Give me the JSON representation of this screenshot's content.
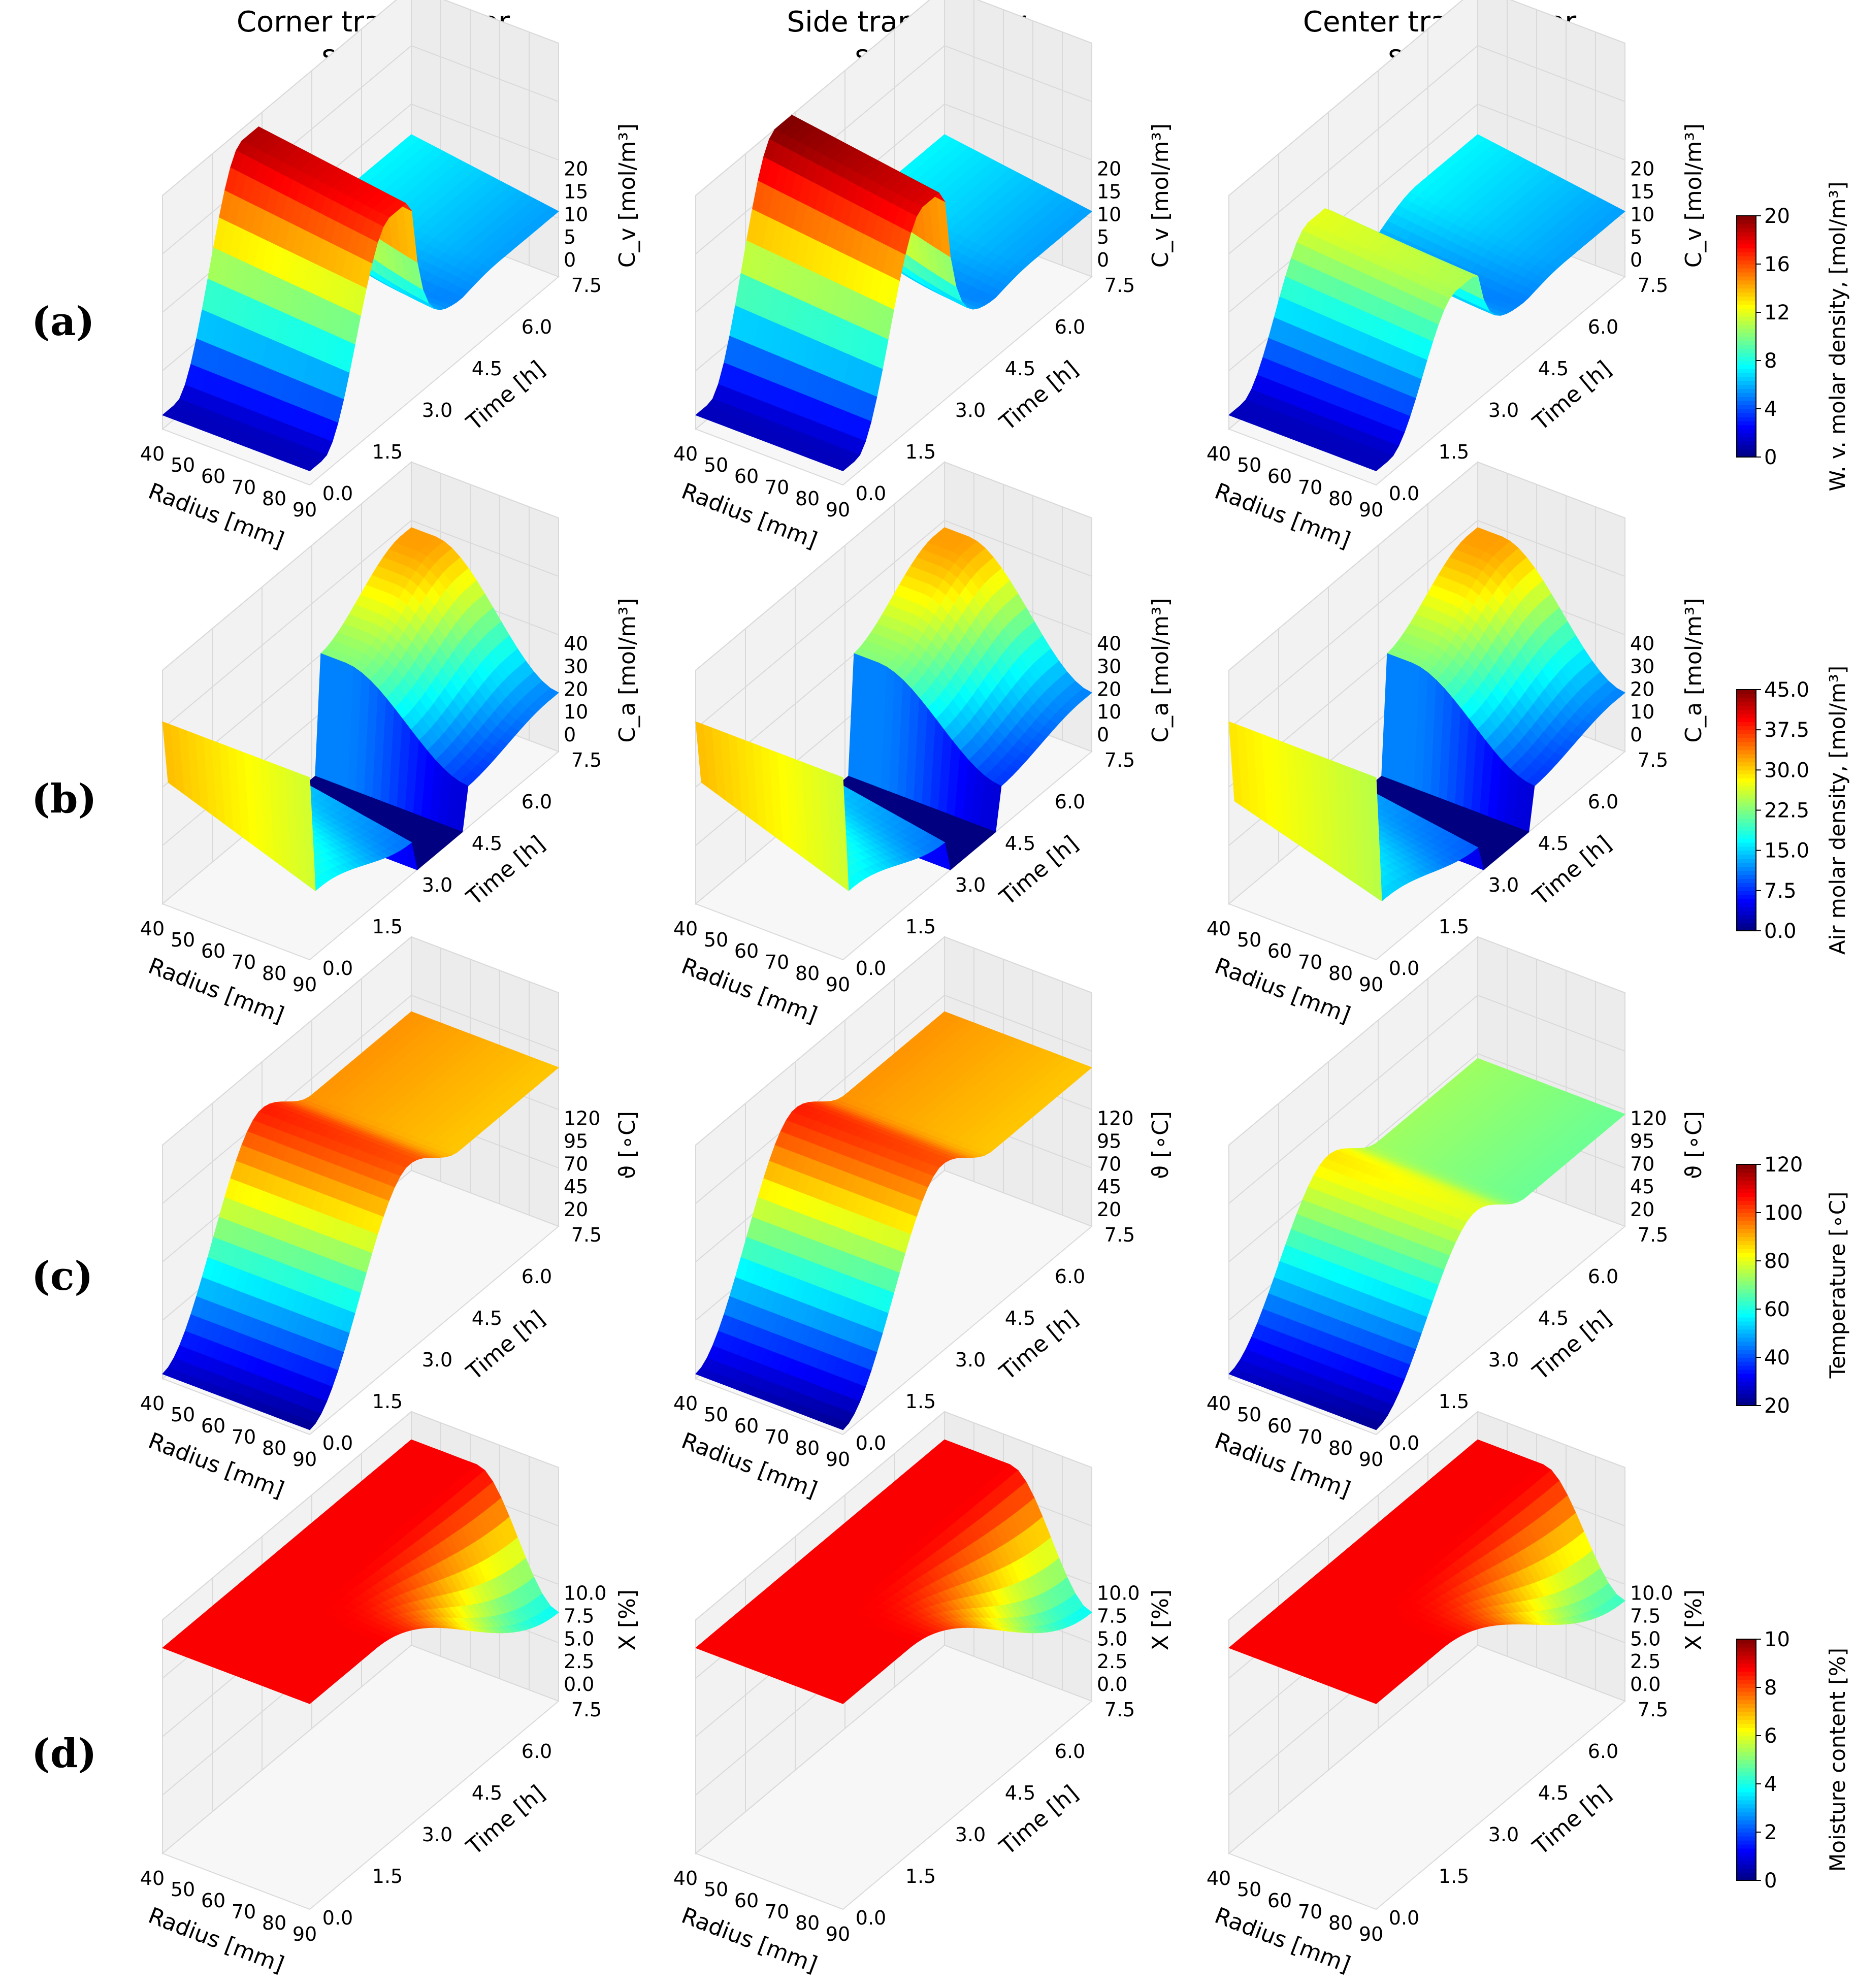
{
  "column_titles": [
    [
      "Corner transformer",
      "sample"
    ],
    [
      "Side transformer",
      "sample"
    ],
    [
      "Center transformer",
      "sample"
    ]
  ],
  "row_labels": [
    "(a)",
    "(b)",
    "(c)",
    "(d)"
  ],
  "colorbars": [
    {
      "label": "W. v. molar density, [mol/m³]",
      "ticks": [
        "0",
        "4",
        "8",
        "12",
        "16",
        "20"
      ],
      "range": [
        0,
        20
      ]
    },
    {
      "label": "Air molar density, [mol/m³]",
      "ticks": [
        "0.0",
        "7.5",
        "15.0",
        "22.5",
        "30.0",
        "37.5",
        "45.0"
      ],
      "range": [
        0,
        45
      ]
    },
    {
      "label": "Temperature [∘C]",
      "ticks": [
        "20",
        "40",
        "60",
        "80",
        "100",
        "120"
      ],
      "range": [
        20,
        120
      ]
    },
    {
      "label": "Moisture content [%]",
      "ticks": [
        "0",
        "2",
        "4",
        "6",
        "8",
        "10"
      ],
      "range": [
        0,
        10
      ]
    }
  ],
  "chart_data": [
    {
      "type": "surface3d",
      "row": "(a)",
      "title": "Corner transformer sample",
      "xlabel": "Radius [mm]",
      "ylabel": "Time [h]",
      "zlabel": "C_v [mol/m³]",
      "x_ticks": [
        "40",
        "50",
        "60",
        "70",
        "80",
        "90"
      ],
      "y_ticks": [
        "0.0",
        "1.5",
        "3.0",
        "4.5",
        "6.0",
        "7.5"
      ],
      "z_ticks": [
        "0",
        "5",
        "10",
        "15",
        "20"
      ],
      "xlim": [
        40,
        90
      ],
      "ylim": [
        0,
        7.5
      ],
      "zlim": [
        0,
        20
      ],
      "kind": "cv",
      "variant": "corner"
    },
    {
      "type": "surface3d",
      "row": "(a)",
      "title": "Side transformer sample",
      "xlabel": "Radius [mm]",
      "ylabel": "Time [h]",
      "zlabel": "C_v [mol/m³]",
      "x_ticks": [
        "40",
        "50",
        "60",
        "70",
        "80",
        "90"
      ],
      "y_ticks": [
        "0.0",
        "1.5",
        "3.0",
        "4.5",
        "6.0",
        "7.5"
      ],
      "z_ticks": [
        "0",
        "5",
        "10",
        "15",
        "20"
      ],
      "xlim": [
        40,
        90
      ],
      "ylim": [
        0,
        7.5
      ],
      "zlim": [
        0,
        20
      ],
      "kind": "cv",
      "variant": "side"
    },
    {
      "type": "surface3d",
      "row": "(a)",
      "title": "Center transformer sample",
      "xlabel": "Radius [mm]",
      "ylabel": "Time [h]",
      "zlabel": "C_v [mol/m³]",
      "x_ticks": [
        "40",
        "50",
        "60",
        "70",
        "80",
        "90"
      ],
      "y_ticks": [
        "0.0",
        "1.5",
        "3.0",
        "4.5",
        "6.0",
        "7.5"
      ],
      "z_ticks": [
        "0",
        "5",
        "10",
        "15",
        "20"
      ],
      "xlim": [
        40,
        90
      ],
      "ylim": [
        0,
        7.5
      ],
      "zlim": [
        0,
        20
      ],
      "kind": "cv",
      "variant": "center"
    },
    {
      "type": "surface3d",
      "row": "(b)",
      "title": "Corner transformer sample",
      "xlabel": "Radius [mm]",
      "ylabel": "Time [h]",
      "zlabel": "C_a [mol/m³]",
      "x_ticks": [
        "40",
        "50",
        "60",
        "70",
        "80",
        "90"
      ],
      "y_ticks": [
        "0.0",
        "1.5",
        "3.0",
        "4.5",
        "6.0",
        "7.5"
      ],
      "z_ticks": [
        "0",
        "10",
        "20",
        "30",
        "40"
      ],
      "xlim": [
        40,
        90
      ],
      "ylim": [
        0,
        7.5
      ],
      "zlim": [
        0,
        45
      ],
      "kind": "ca",
      "variant": "corner"
    },
    {
      "type": "surface3d",
      "row": "(b)",
      "title": "Side transformer sample",
      "xlabel": "Radius [mm]",
      "ylabel": "Time [h]",
      "zlabel": "C_a [mol/m³]",
      "x_ticks": [
        "40",
        "50",
        "60",
        "70",
        "80",
        "90"
      ],
      "y_ticks": [
        "0.0",
        "1.5",
        "3.0",
        "4.5",
        "6.0",
        "7.5"
      ],
      "z_ticks": [
        "0",
        "10",
        "20",
        "30",
        "40"
      ],
      "xlim": [
        40,
        90
      ],
      "ylim": [
        0,
        7.5
      ],
      "zlim": [
        0,
        45
      ],
      "kind": "ca",
      "variant": "side"
    },
    {
      "type": "surface3d",
      "row": "(b)",
      "title": "Center transformer sample",
      "xlabel": "Radius [mm]",
      "ylabel": "Time [h]",
      "zlabel": "C_a [mol/m³]",
      "x_ticks": [
        "40",
        "50",
        "60",
        "70",
        "80",
        "90"
      ],
      "y_ticks": [
        "0.0",
        "1.5",
        "3.0",
        "4.5",
        "6.0",
        "7.5"
      ],
      "z_ticks": [
        "0",
        "10",
        "20",
        "30",
        "40"
      ],
      "xlim": [
        40,
        90
      ],
      "ylim": [
        0,
        7.5
      ],
      "zlim": [
        0,
        45
      ],
      "kind": "ca",
      "variant": "center"
    },
    {
      "type": "surface3d",
      "row": "(c)",
      "title": "Corner transformer sample",
      "xlabel": "Radius [mm]",
      "ylabel": "Time [h]",
      "zlabel": "ϑ [∘C]",
      "x_ticks": [
        "40",
        "50",
        "60",
        "70",
        "80",
        "90"
      ],
      "y_ticks": [
        "0.0",
        "1.5",
        "3.0",
        "4.5",
        "6.0",
        "7.5"
      ],
      "z_ticks": [
        "20",
        "45",
        "70",
        "95",
        "120"
      ],
      "xlim": [
        40,
        90
      ],
      "ylim": [
        0,
        7.5
      ],
      "zlim": [
        20,
        120
      ],
      "kind": "temp",
      "variant": "corner"
    },
    {
      "type": "surface3d",
      "row": "(c)",
      "title": "Side transformer sample",
      "xlabel": "Radius [mm]",
      "ylabel": "Time [h]",
      "zlabel": "ϑ [∘C]",
      "x_ticks": [
        "40",
        "50",
        "60",
        "70",
        "80",
        "90"
      ],
      "y_ticks": [
        "0.0",
        "1.5",
        "3.0",
        "4.5",
        "6.0",
        "7.5"
      ],
      "z_ticks": [
        "20",
        "45",
        "70",
        "95",
        "120"
      ],
      "xlim": [
        40,
        90
      ],
      "ylim": [
        0,
        7.5
      ],
      "zlim": [
        20,
        120
      ],
      "kind": "temp",
      "variant": "side"
    },
    {
      "type": "surface3d",
      "row": "(c)",
      "title": "Center transformer sample",
      "xlabel": "Radius [mm]",
      "ylabel": "Time [h]",
      "zlabel": "ϑ [∘C]",
      "x_ticks": [
        "40",
        "50",
        "60",
        "70",
        "80",
        "90"
      ],
      "y_ticks": [
        "0.0",
        "1.5",
        "3.0",
        "4.5",
        "6.0",
        "7.5"
      ],
      "z_ticks": [
        "20",
        "45",
        "70",
        "95",
        "120"
      ],
      "xlim": [
        40,
        90
      ],
      "ylim": [
        0,
        7.5
      ],
      "zlim": [
        20,
        120
      ],
      "kind": "temp",
      "variant": "center"
    },
    {
      "type": "surface3d",
      "row": "(d)",
      "title": "Corner transformer sample",
      "xlabel": "Radius [mm]",
      "ylabel": "Time [h]",
      "zlabel": "X [%]",
      "x_ticks": [
        "40",
        "50",
        "60",
        "70",
        "80",
        "90"
      ],
      "y_ticks": [
        "0.0",
        "1.5",
        "3.0",
        "4.5",
        "6.0",
        "7.5"
      ],
      "z_ticks": [
        "0.0",
        "2.5",
        "5.0",
        "7.5",
        "10.0"
      ],
      "xlim": [
        40,
        90
      ],
      "ylim": [
        0,
        7.5
      ],
      "zlim": [
        0,
        10
      ],
      "kind": "x",
      "variant": "corner"
    },
    {
      "type": "surface3d",
      "row": "(d)",
      "title": "Side transformer sample",
      "xlabel": "Radius [mm]",
      "ylabel": "Time [h]",
      "zlabel": "X [%]",
      "x_ticks": [
        "40",
        "50",
        "60",
        "70",
        "80",
        "90"
      ],
      "y_ticks": [
        "0.0",
        "1.5",
        "3.0",
        "4.5",
        "6.0",
        "7.5"
      ],
      "z_ticks": [
        "0.0",
        "2.5",
        "5.0",
        "7.5",
        "10.0"
      ],
      "xlim": [
        40,
        90
      ],
      "ylim": [
        0,
        7.5
      ],
      "zlim": [
        0,
        10
      ],
      "kind": "x",
      "variant": "side"
    },
    {
      "type": "surface3d",
      "row": "(d)",
      "title": "Center transformer sample",
      "xlabel": "Radius [mm]",
      "ylabel": "Time [h]",
      "zlabel": "X [%]",
      "x_ticks": [
        "40",
        "50",
        "60",
        "70",
        "80",
        "90"
      ],
      "y_ticks": [
        "0.0",
        "1.5",
        "3.0",
        "4.5",
        "6.0",
        "7.5"
      ],
      "z_ticks": [
        "0.0",
        "2.5",
        "5.0",
        "7.5",
        "10.0"
      ],
      "xlim": [
        40,
        90
      ],
      "ylim": [
        0,
        7.5
      ],
      "zlim": [
        0,
        10
      ],
      "kind": "x",
      "variant": "center"
    }
  ]
}
